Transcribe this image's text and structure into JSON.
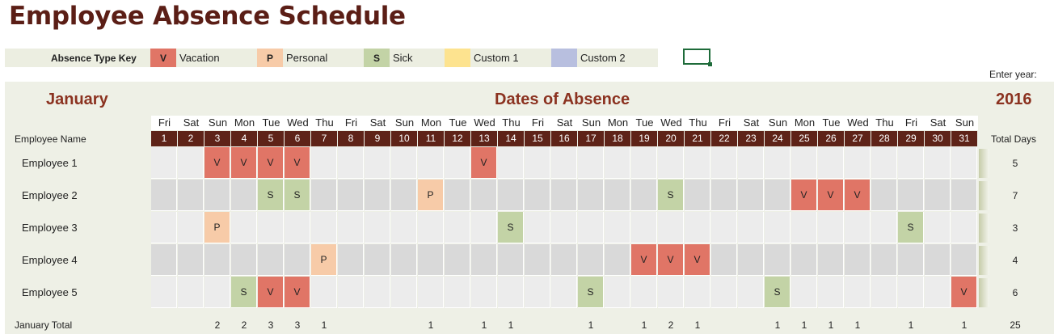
{
  "title": "Employee Absence Schedule",
  "key": {
    "label": "Absence Type Key",
    "items": [
      {
        "code": "V",
        "name": "Vacation",
        "color": "#e07566"
      },
      {
        "code": "P",
        "name": "Personal",
        "color": "#f7cba8"
      },
      {
        "code": "S",
        "name": "Sick",
        "color": "#c3d3a6"
      },
      {
        "code": "",
        "name": "Custom 1",
        "color": "#fde38f"
      },
      {
        "code": "",
        "name": "Custom 2",
        "color": "#b8bfdf"
      }
    ]
  },
  "enter_year_label": "Enter year:",
  "month": "January",
  "section_title": "Dates of Absence",
  "year": "2016",
  "employee_name_header": "Employee Name",
  "total_days_header": "Total Days",
  "weekdays": [
    "Fri",
    "Sat",
    "Sun",
    "Mon",
    "Tue",
    "Wed",
    "Thu",
    "Fri",
    "Sat",
    "Sun",
    "Mon",
    "Tue",
    "Wed",
    "Thu",
    "Fri",
    "Sat",
    "Sun",
    "Mon",
    "Tue",
    "Wed",
    "Thu",
    "Fri",
    "Sat",
    "Sun",
    "Mon",
    "Tue",
    "Wed",
    "Thu",
    "Fri",
    "Sat",
    "Sun"
  ],
  "days": [
    "1",
    "2",
    "3",
    "4",
    "5",
    "6",
    "7",
    "8",
    "9",
    "10",
    "11",
    "12",
    "13",
    "14",
    "15",
    "16",
    "17",
    "18",
    "19",
    "20",
    "21",
    "22",
    "23",
    "24",
    "25",
    "26",
    "27",
    "28",
    "29",
    "30",
    "31"
  ],
  "employees": [
    {
      "name": "Employee 1",
      "total": "5",
      "absences": {
        "3": "V",
        "4": "V",
        "5": "V",
        "6": "V",
        "13": "V"
      }
    },
    {
      "name": "Employee 2",
      "total": "7",
      "absences": {
        "5": "S",
        "6": "S",
        "11": "P",
        "20": "S",
        "25": "V",
        "26": "V",
        "27": "V"
      }
    },
    {
      "name": "Employee 3",
      "total": "3",
      "absences": {
        "3": "P",
        "14": "S",
        "29": "S"
      }
    },
    {
      "name": "Employee 4",
      "total": "4",
      "absences": {
        "7": "P",
        "19": "V",
        "20": "V",
        "21": "V"
      }
    },
    {
      "name": "Employee 5",
      "total": "6",
      "absences": {
        "4": "S",
        "5": "V",
        "6": "V",
        "17": "S",
        "24": "S",
        "31": "V"
      }
    }
  ],
  "footer": {
    "label": "January Total",
    "day_totals": {
      "3": "2",
      "4": "2",
      "5": "3",
      "6": "3",
      "7": "1",
      "11": "1",
      "13": "1",
      "14": "1",
      "17": "1",
      "19": "1",
      "20": "2",
      "21": "1",
      "24": "1",
      "25": "1",
      "26": "1",
      "27": "1",
      "29": "1",
      "31": "1"
    },
    "grand_total": "25"
  },
  "colors": {
    "header_bar": "#5e2318",
    "accent_text": "#8b3220",
    "row_light": "#ececec",
    "row_dark": "#d9d9d9"
  }
}
